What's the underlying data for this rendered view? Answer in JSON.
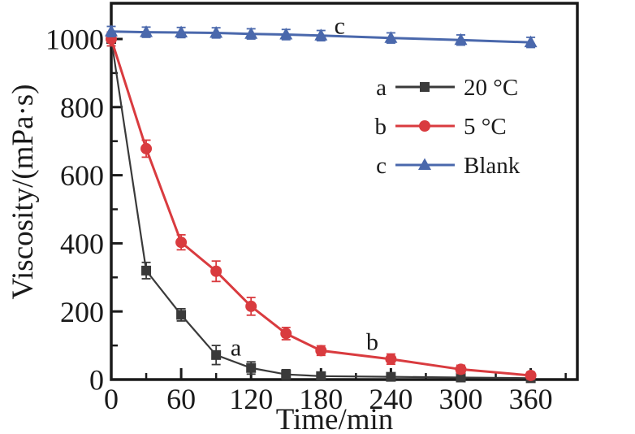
{
  "figure": {
    "background": "#ffffff",
    "frame_color": "#1a1a1a",
    "text_color": "#1a1a1a"
  },
  "chart_data": {
    "type": "line",
    "title": "",
    "xlabel": "Time/min",
    "ylabel": "Viscosity/(mPa·s)",
    "xlim": [
      0,
      400
    ],
    "ylim": [
      0,
      1105
    ],
    "grid": false,
    "legend_position": "inside-upper-right",
    "x_major_ticks": [
      0,
      60,
      120,
      180,
      240,
      300,
      360
    ],
    "x_minor_ticks": [
      30,
      90,
      150,
      210,
      270,
      330,
      390
    ],
    "y_major_ticks": [
      0,
      200,
      400,
      600,
      800,
      1000
    ],
    "y_minor_ticks": [
      100,
      300,
      500,
      700,
      900
    ],
    "x": [
      0,
      30,
      60,
      90,
      120,
      150,
      180,
      240,
      300,
      360
    ],
    "series": [
      {
        "id": "a",
        "letter": "a",
        "name": "20 °C",
        "color": "#3a3a3a",
        "marker": "square",
        "values": [
          1000,
          320,
          190,
          72,
          34,
          15,
          10,
          8,
          6,
          4
        ],
        "errors": [
          20,
          24,
          18,
          28,
          18,
          14,
          10,
          8,
          8,
          6
        ],
        "annotation": {
          "text": "a",
          "x": 107,
          "y": 95
        }
      },
      {
        "id": "b",
        "letter": "b",
        "name": "5 °C",
        "color": "#d93b3f",
        "marker": "circle",
        "values": [
          1000,
          678,
          403,
          318,
          215,
          135,
          85,
          60,
          30,
          12
        ],
        "errors": [
          20,
          25,
          22,
          30,
          26,
          18,
          14,
          15,
          12,
          10
        ],
        "annotation": {
          "text": "b",
          "x": 224,
          "y": 112
        }
      },
      {
        "id": "c",
        "letter": "c",
        "name": "Blank",
        "color": "#4a68ac",
        "marker": "triangle",
        "values": [
          1022,
          1020,
          1019,
          1018,
          1015,
          1013,
          1010,
          1003,
          997,
          990
        ],
        "errors": [
          15,
          15,
          15,
          15,
          15,
          15,
          15,
          15,
          15,
          15
        ],
        "annotation": {
          "text": "c",
          "x": 196,
          "y": 1040
        }
      }
    ]
  },
  "legend": {
    "entries": [
      {
        "letter": "a",
        "label": "20 °C"
      },
      {
        "letter": "b",
        "label": "5 °C"
      },
      {
        "letter": "c",
        "label": "Blank"
      }
    ]
  }
}
